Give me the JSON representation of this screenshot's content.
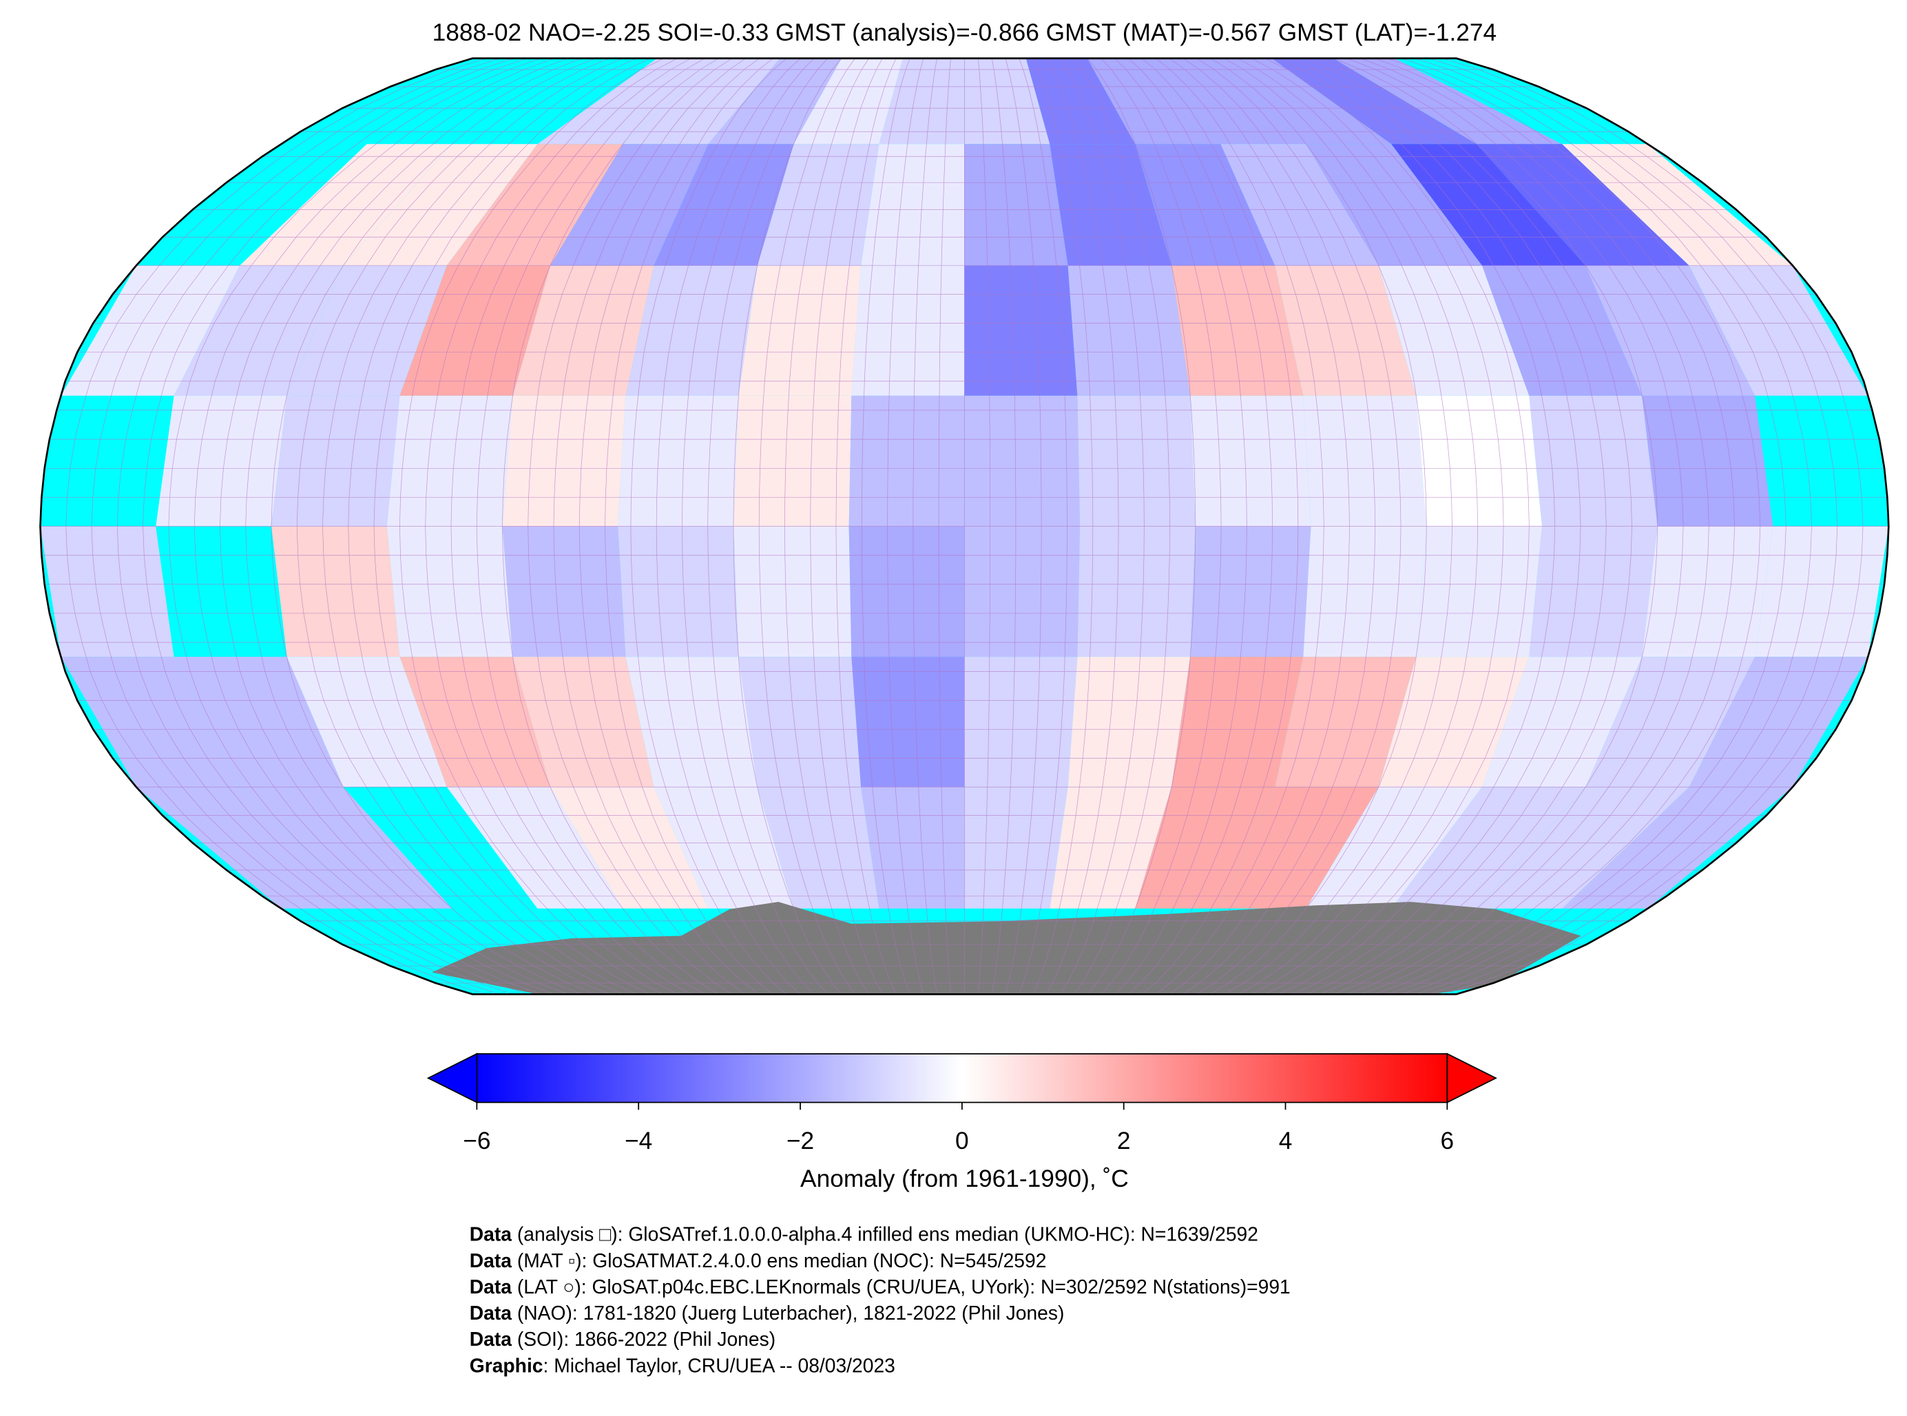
{
  "chart_data": {
    "type": "map",
    "title": "1888-02 NAO=-2.25 SOI=-0.33 GMST (analysis)=-0.866 GMST (MAT)=-0.567 GMST (LAT)=-1.274",
    "lat_edges": [
      90,
      67.5,
      45,
      22.5,
      0,
      -22.5,
      -45,
      -67.5,
      -90
    ],
    "lon_edges": [
      -180,
      -157.5,
      -135,
      -112.5,
      -90,
      -67.5,
      -45,
      -22.5,
      0,
      22.5,
      45,
      67.5,
      90,
      112.5,
      135,
      157.5,
      180
    ],
    "anomaly": [
      [
        null,
        null,
        null,
        -1,
        -1,
        -1.5,
        -0.5,
        -1,
        -1,
        -3,
        -2,
        -2,
        -2,
        -3,
        -2,
        null
      ],
      [
        null,
        0.5,
        0.5,
        1.5,
        -2,
        -2.5,
        -1,
        -0.5,
        -2,
        -3,
        -2.5,
        -1.5,
        -2,
        -4,
        -3.5,
        0.5
      ],
      [
        -0.5,
        -1,
        -1,
        2,
        1,
        -1,
        0.5,
        -0.5,
        -3,
        -1.5,
        1.5,
        1,
        -0.5,
        -2,
        -1.5,
        -1
      ],
      [
        null,
        -0.5,
        -1,
        -0.5,
        0.5,
        -0.5,
        0.5,
        -1.5,
        -1.5,
        -1,
        -0.5,
        -0.5,
        0,
        -1,
        -2,
        null
      ],
      [
        -1,
        null,
        1,
        -0.5,
        -1.5,
        -1,
        -0.5,
        -2,
        -1.5,
        -1,
        -1.5,
        -0.5,
        -0.5,
        -1,
        -0.5,
        -0.5
      ],
      [
        -1.5,
        -1.5,
        -0.5,
        1.5,
        1,
        -0.5,
        -1,
        -2.5,
        -1,
        0.5,
        2,
        1.5,
        0.5,
        -0.5,
        -1,
        -1.5
      ],
      [
        -1.5,
        -1.5,
        null,
        -0.5,
        0.5,
        -0.5,
        -1,
        -1.5,
        -1,
        0.5,
        2,
        2,
        -0.5,
        -1,
        -1,
        -1.5
      ],
      [
        null,
        null,
        null,
        null,
        null,
        null,
        null,
        null,
        null,
        null,
        null,
        null,
        null,
        null,
        null,
        null
      ]
    ],
    "cmap": [
      "#0000ff",
      "#ffffff",
      "#ff0000"
    ],
    "missing_color": "#00ffff",
    "clim": [
      -6,
      6
    ],
    "cticks": [
      {
        "value": -6,
        "label": "−6"
      },
      {
        "value": -4,
        "label": "−4"
      },
      {
        "value": -2,
        "label": "−2"
      },
      0,
      2,
      4,
      6
    ],
    "colorbar_label": "Anomaly (from 1961-1990), ˚C",
    "credits": [
      {
        "label": "Data",
        "text": " (analysis □): GloSATref.1.0.0.0-alpha.4 infilled ens median (UKMO-HC): N=1639/2592"
      },
      {
        "label": "Data",
        "text": " (MAT ▫): GloSATMAT.2.4.0.0 ens median (NOC): N=545/2592"
      },
      {
        "label": "Data",
        "text": " (LAT ○): GloSAT.p04c.EBC.LEKnormals (CRU/UEA, UYork): N=302/2592 N(stations)=991"
      },
      {
        "label": "Data",
        "text": " (NAO): 1781-1820 (Juerg Luterbacher), 1821-2022 (Phil Jones)"
      },
      {
        "label": "Data",
        "text": " (SOI): 1866-2022 (Phil Jones)"
      },
      {
        "label": "Graphic",
        "text": ": Michael Taylor, CRU/UEA -- 08/03/2023"
      }
    ]
  }
}
